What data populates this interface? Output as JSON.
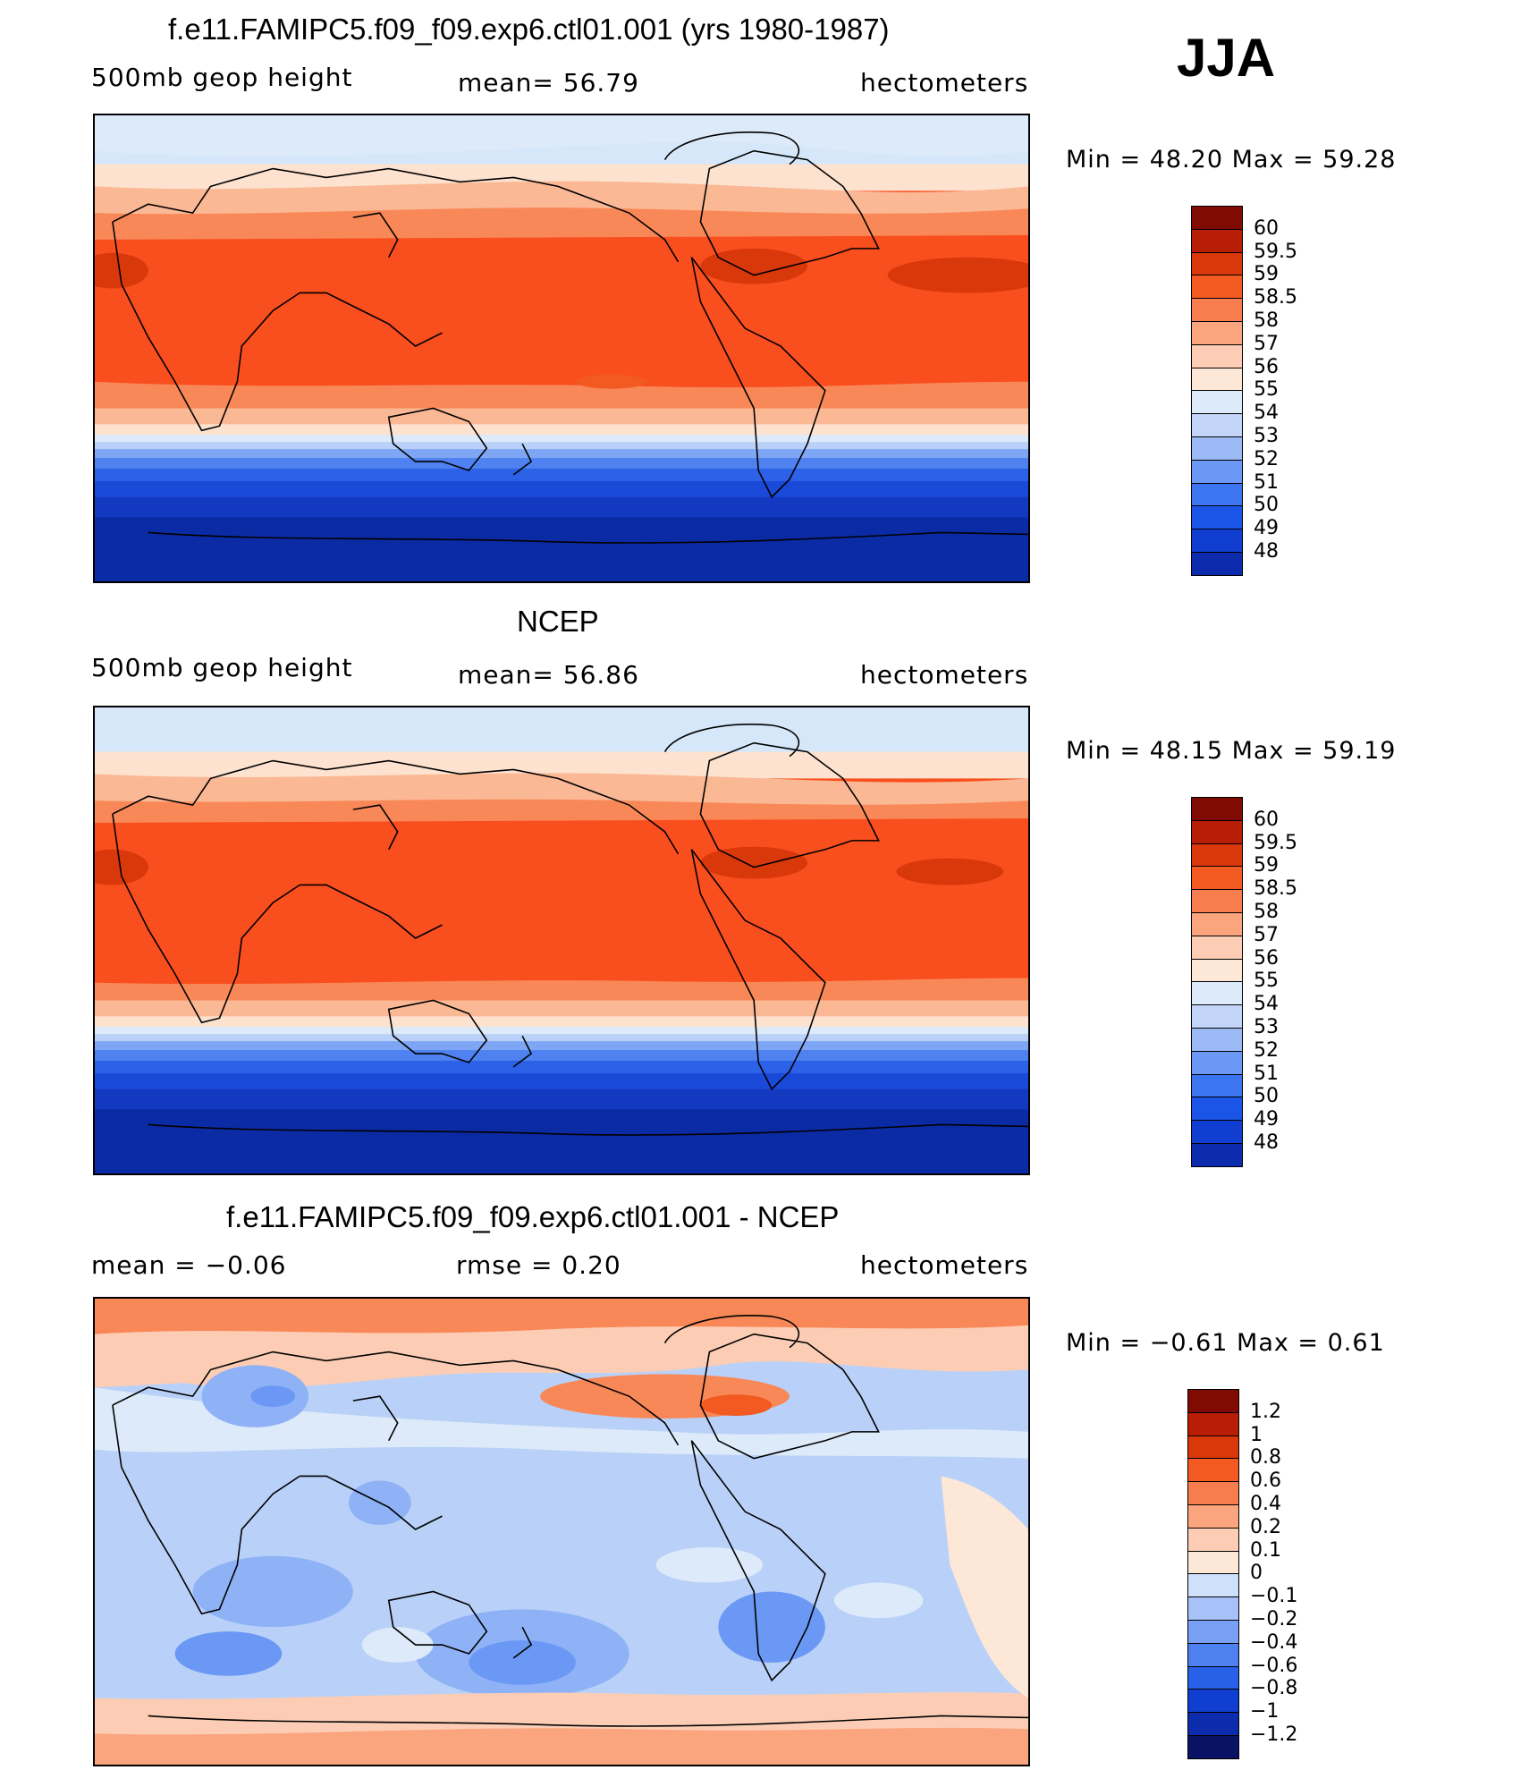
{
  "season": "JJA",
  "colors": {
    "abs_scale": [
      "#0a1266",
      "#0c2bad",
      "#103ed0",
      "#1a55e8",
      "#3c75f0",
      "#6a98f4",
      "#9bbaf6",
      "#c3d6fa",
      "#dceaf9",
      "#fde8d8",
      "#fccdb4",
      "#faa57e",
      "#f77d4e",
      "#f25a22",
      "#d9380a",
      "#b81d06",
      "#7f0b02"
    ],
    "diff_scale": [
      "#0a1266",
      "#0c2bad",
      "#103ed0",
      "#2860e8",
      "#4f80f0",
      "#7aa0f4",
      "#a6c2f8",
      "#cfe0fb",
      "#fde8d8",
      "#fccdb4",
      "#faa57e",
      "#f77d4e",
      "#f25a22",
      "#d9380a",
      "#b81d06",
      "#7f0b02"
    ]
  },
  "panels": [
    {
      "id": "model",
      "title": "f.e11.FAMIPC5.f09_f09.exp6.ctl01.001 (yrs 1980-1987)",
      "left_label": "500mb  geop  height",
      "mid_label": "mean=   56.79",
      "right_label": "hectometers",
      "minmax": "Min  =     48.20  Max  =     59.28",
      "colorbar_labels": [
        "60",
        "59.5",
        "59",
        "58.5",
        "58",
        "57",
        "56",
        "55",
        "54",
        "53",
        "52",
        "51",
        "50",
        "49",
        "48"
      ]
    },
    {
      "id": "obs",
      "title": "NCEP",
      "left_label": "500mb  geop  height",
      "mid_label": "mean=   56.86",
      "right_label": "hectometers",
      "minmax": "Min  =     48.15  Max  =     59.19",
      "colorbar_labels": [
        "60",
        "59.5",
        "59",
        "58.5",
        "58",
        "57",
        "56",
        "55",
        "54",
        "53",
        "52",
        "51",
        "50",
        "49",
        "48"
      ]
    },
    {
      "id": "diff",
      "title": "f.e11.FAMIPC5.f09_f09.exp6.ctl01.001 - NCEP",
      "left_label": "mean  =    −0.06",
      "mid_label": "rmse  =     0.20",
      "right_label": "hectometers",
      "minmax": "Min  =    −0.61  Max  =      0.61",
      "colorbar_labels": [
        "1.2",
        "1",
        "0.8",
        "0.6",
        "0.4",
        "0.2",
        "0.1",
        "0",
        "−0.1",
        "−0.2",
        "−0.4",
        "−0.6",
        "−0.8",
        "−1",
        "−1.2"
      ]
    }
  ]
}
